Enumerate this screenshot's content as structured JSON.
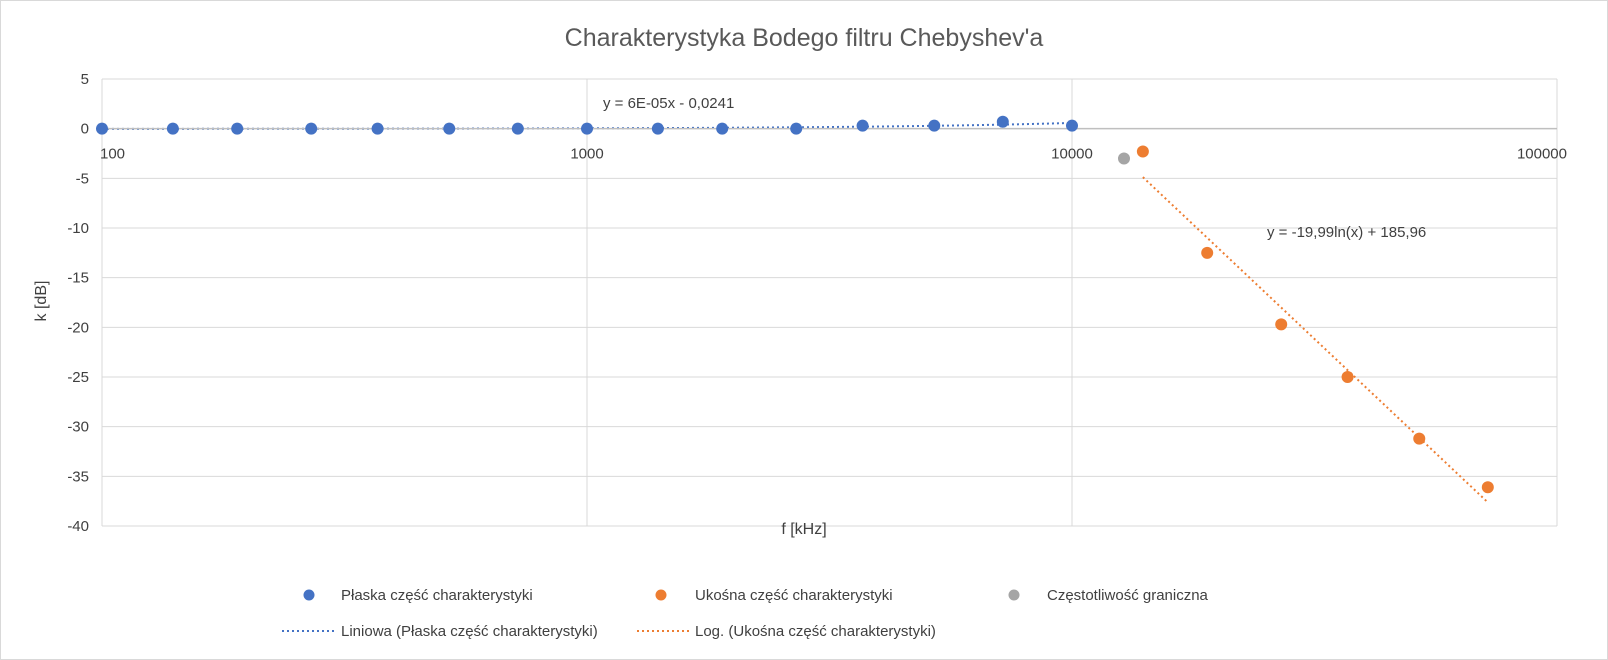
{
  "chart_data": {
    "type": "scatter",
    "title": "Charakterystyka Bodego filtru Chebyshev'a",
    "xlabel": "f [kHz]",
    "ylabel": "k [dB]",
    "x_scale": "log",
    "xlim": [
      100,
      100000
    ],
    "ylim": [
      -40,
      5
    ],
    "x_ticks": [
      100,
      1000,
      10000,
      100000
    ],
    "x_tick_labels": [
      "100",
      "1000",
      "10000",
      "100000"
    ],
    "y_ticks": [
      5,
      0,
      -5,
      -10,
      -15,
      -20,
      -25,
      -30,
      -35,
      -40
    ],
    "y_tick_labels": [
      "5",
      "0",
      "-5",
      "-10",
      "-15",
      "-20",
      "-25",
      "-30",
      "-35",
      "-40"
    ],
    "grid": true,
    "legend_position": "bottom",
    "series": [
      {
        "name": "Płaska część charakterystyki",
        "color": "#4472c4",
        "marker": "circle",
        "x": [
          100,
          140,
          190,
          270,
          370,
          520,
          720,
          1000,
          1400,
          1900,
          2700,
          3700,
          5200,
          7200,
          10000
        ],
        "y": [
          0,
          0,
          0,
          0,
          0,
          0,
          0,
          0,
          0,
          0,
          0,
          0.3,
          0.3,
          0.7,
          0.3
        ]
      },
      {
        "name": "Ukośna część charakterystyki",
        "color": "#ed7d31",
        "marker": "circle",
        "x": [
          14000,
          19000,
          27000,
          37000,
          52000,
          72000
        ],
        "y": [
          -2.3,
          -12.5,
          -19.7,
          -25.0,
          -31.2,
          -36.1
        ]
      },
      {
        "name": "Częstotliwość graniczna",
        "color": "#a5a5a5",
        "marker": "circle",
        "x": [
          12800
        ],
        "y": [
          -3.0
        ]
      }
    ],
    "trendlines": [
      {
        "name": "Liniowa (Płaska część charakterystyki)",
        "color": "#4472c4",
        "type": "linear",
        "equation": "y = 6E-05x - 0,0241",
        "slope": 6e-05,
        "intercept": -0.0241,
        "x_range": [
          100,
          10000
        ]
      },
      {
        "name": "Log. (Ukośna część charakterystyki)",
        "color": "#ed7d31",
        "type": "log",
        "equation": "y = -19,99ln(x) + 185,96",
        "coefficient": -19.99,
        "intercept": 185.96,
        "x_range": [
          14000,
          72000
        ]
      }
    ]
  }
}
